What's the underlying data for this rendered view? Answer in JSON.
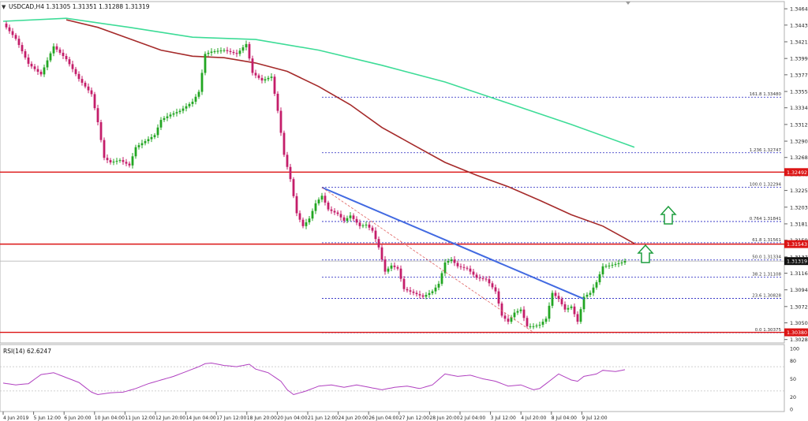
{
  "header": {
    "arrow": "▼",
    "symbol_text": "USDCAD,H4  1.31305 1.31351 1.31288 1.31319"
  },
  "rsi_label": "RSI(14) 62.6247",
  "colors": {
    "bull": "#22a622",
    "bear": "#c41e6a",
    "ma_red": "#a52a2a",
    "ma_green": "#3ddc97",
    "trend": "#4169e1",
    "level": "#dc1414",
    "fib": "#2020c0",
    "arrow": "#1e9e3e",
    "rsi": "#b040c0"
  },
  "chart_data": {
    "type": "candlestick",
    "symbol": "USDCAD",
    "timeframe": "H4",
    "ohlc": {
      "open": 1.31305,
      "high": 1.31351,
      "low": 1.31288,
      "close": 1.31319
    },
    "price_axis_ticks": [
      "1.34645",
      "1.34430",
      "1.34210",
      "1.33990",
      "1.33775",
      "1.33555",
      "1.33340",
      "1.33120",
      "1.32900",
      "1.32685",
      "1.32465",
      "1.32250",
      "1.32030",
      "1.31810",
      "1.31595",
      "1.31375",
      "1.31160",
      "1.30940",
      "1.30720",
      "1.30505",
      "1.30285"
    ],
    "time_axis_labels": [
      "4 Jun 2019",
      "5 Jun 12:00",
      "6 Jun 20:00",
      "10 Jun 04:00",
      "11 Jun 12:00",
      "12 Jun 20:00",
      "14 Jun 04:00",
      "17 Jun 12:00",
      "18 Jun 20:00",
      "20 Jun 04:00",
      "21 Jun 12:00",
      "24 Jun 20:00",
      "26 Jun 04:00",
      "27 Jun 12:00",
      "28 Jun 20:00",
      "2 Jul 04:00",
      "3 Jul 12:00",
      "4 Jul 20:00",
      "8 Jul 04:00",
      "9 Jul 12:00"
    ],
    "ylim": [
      1.3024,
      1.3474
    ],
    "price_path": [
      [
        0,
        1.3445
      ],
      [
        4,
        1.3425
      ],
      [
        8,
        1.3392
      ],
      [
        12,
        1.3378
      ],
      [
        16,
        1.3415
      ],
      [
        20,
        1.3398
      ],
      [
        24,
        1.3372
      ],
      [
        28,
        1.3352
      ],
      [
        30,
        1.3315
      ],
      [
        32,
        1.3268
      ],
      [
        34,
        1.3262
      ],
      [
        37,
        1.3265
      ],
      [
        40,
        1.3258
      ],
      [
        42,
        1.3282
      ],
      [
        45,
        1.329
      ],
      [
        48,
        1.3298
      ],
      [
        50,
        1.3318
      ],
      [
        53,
        1.3325
      ],
      [
        56,
        1.333
      ],
      [
        60,
        1.3342
      ],
      [
        62,
        1.3355
      ],
      [
        64,
        1.3405
      ],
      [
        66,
        1.3408
      ],
      [
        70,
        1.341
      ],
      [
        74,
        1.3405
      ],
      [
        77,
        1.3418
      ],
      [
        79,
        1.338
      ],
      [
        82,
        1.337
      ],
      [
        85,
        1.3375
      ],
      [
        87,
        1.333
      ],
      [
        89,
        1.3272
      ],
      [
        91,
        1.324
      ],
      [
        93,
        1.3195
      ],
      [
        95,
        1.3178
      ],
      [
        97,
        1.3188
      ],
      [
        99,
        1.3208
      ],
      [
        101,
        1.3218
      ],
      [
        103,
        1.32
      ],
      [
        106,
        1.3194
      ],
      [
        108,
        1.3185
      ],
      [
        110,
        1.3192
      ],
      [
        113,
        1.3178
      ],
      [
        115,
        1.318
      ],
      [
        117,
        1.3172
      ],
      [
        119,
        1.315
      ],
      [
        121,
        1.3118
      ],
      [
        123,
        1.3126
      ],
      [
        125,
        1.3122
      ],
      [
        127,
        1.3095
      ],
      [
        130,
        1.309
      ],
      [
        133,
        1.3085
      ],
      [
        136,
        1.3092
      ],
      [
        138,
        1.3102
      ],
      [
        140,
        1.313
      ],
      [
        142,
        1.3134
      ],
      [
        144,
        1.3125
      ],
      [
        147,
        1.3122
      ],
      [
        150,
        1.311
      ],
      [
        153,
        1.3108
      ],
      [
        156,
        1.3092
      ],
      [
        158,
        1.306
      ],
      [
        160,
        1.3052
      ],
      [
        162,
        1.3064
      ],
      [
        164,
        1.3068
      ],
      [
        166,
        1.3046
      ],
      [
        168,
        1.3046
      ],
      [
        170,
        1.3048
      ],
      [
        172,
        1.3056
      ],
      [
        174,
        1.309
      ],
      [
        176,
        1.3082
      ],
      [
        178,
        1.3068
      ],
      [
        180,
        1.3072
      ],
      [
        182,
        1.3052
      ],
      [
        184,
        1.3085
      ],
      [
        186,
        1.309
      ],
      [
        188,
        1.3104
      ],
      [
        190,
        1.3125
      ],
      [
        192,
        1.3126
      ],
      [
        194,
        1.3128
      ],
      [
        196,
        1.313
      ],
      [
        197,
        1.3132
      ]
    ],
    "ma_red_path": [
      [
        20,
        1.345
      ],
      [
        30,
        1.344
      ],
      [
        40,
        1.3425
      ],
      [
        50,
        1.341
      ],
      [
        60,
        1.3402
      ],
      [
        70,
        1.34
      ],
      [
        80,
        1.3393
      ],
      [
        90,
        1.3382
      ],
      [
        100,
        1.3362
      ],
      [
        110,
        1.3338
      ],
      [
        120,
        1.3308
      ],
      [
        130,
        1.3285
      ],
      [
        140,
        1.3262
      ],
      [
        150,
        1.3245
      ],
      [
        160,
        1.323
      ],
      [
        170,
        1.3212
      ],
      [
        180,
        1.3193
      ],
      [
        190,
        1.3178
      ],
      [
        197,
        1.3162
      ],
      [
        200,
        1.3155
      ]
    ],
    "ma_green_path": [
      [
        0,
        1.3448
      ],
      [
        20,
        1.3452
      ],
      [
        40,
        1.344
      ],
      [
        60,
        1.3427
      ],
      [
        80,
        1.3424
      ],
      [
        100,
        1.341
      ],
      [
        120,
        1.339
      ],
      [
        140,
        1.3368
      ],
      [
        160,
        1.334
      ],
      [
        180,
        1.3312
      ],
      [
        200,
        1.3282
      ]
    ],
    "trendline": [
      [
        101,
        1.3229
      ],
      [
        184,
        1.3082
      ]
    ],
    "channel_line": [
      [
        101,
        1.3229
      ],
      [
        168,
        1.3038
      ]
    ],
    "horizontal_levels": [
      {
        "price": 1.32492,
        "label": "1.32492"
      },
      {
        "price": 1.31543,
        "label": "1.31543"
      },
      {
        "price": 1.3038,
        "label": "1.30380"
      }
    ],
    "current_price": {
      "price": 1.31319,
      "label": "1.31319"
    },
    "fibonacci_levels": [
      {
        "price": 1.3348,
        "label": "161.8  1.33480"
      },
      {
        "price": 1.32747,
        "label": "1.236  1.32747"
      },
      {
        "price": 1.32294,
        "label": "100.0  1.32294"
      },
      {
        "price": 1.31841,
        "label": "0.764  1.31841"
      },
      {
        "price": 1.31561,
        "label": "61.8  1.31561"
      },
      {
        "price": 1.31334,
        "label": "50.0  1.31334"
      },
      {
        "price": 1.31108,
        "label": "38.2  1.31108"
      },
      {
        "price": 1.30828,
        "label": "23.6  1.30828"
      },
      {
        "price": 1.30375,
        "label": "0.0  1.30375"
      }
    ],
    "rsi": {
      "period": 14,
      "value": 62.6247,
      "levels": [
        70,
        30
      ],
      "axis_ticks": [
        "100",
        "80",
        "50",
        "20",
        "0"
      ],
      "path": [
        [
          0,
          43
        ],
        [
          4,
          40
        ],
        [
          8,
          42
        ],
        [
          12,
          57
        ],
        [
          16,
          60
        ],
        [
          20,
          52
        ],
        [
          24,
          44
        ],
        [
          26,
          36
        ],
        [
          28,
          28
        ],
        [
          30,
          24
        ],
        [
          34,
          27
        ],
        [
          38,
          28
        ],
        [
          42,
          34
        ],
        [
          46,
          42
        ],
        [
          50,
          48
        ],
        [
          54,
          54
        ],
        [
          58,
          62
        ],
        [
          62,
          70
        ],
        [
          64,
          75
        ],
        [
          66,
          76
        ],
        [
          70,
          72
        ],
        [
          74,
          70
        ],
        [
          78,
          74
        ],
        [
          80,
          66
        ],
        [
          84,
          60
        ],
        [
          88,
          46
        ],
        [
          90,
          32
        ],
        [
          92,
          24
        ],
        [
          96,
          30
        ],
        [
          100,
          38
        ],
        [
          104,
          40
        ],
        [
          108,
          36
        ],
        [
          112,
          40
        ],
        [
          116,
          36
        ],
        [
          120,
          32
        ],
        [
          124,
          36
        ],
        [
          128,
          38
        ],
        [
          132,
          34
        ],
        [
          136,
          40
        ],
        [
          140,
          58
        ],
        [
          144,
          54
        ],
        [
          148,
          56
        ],
        [
          152,
          50
        ],
        [
          156,
          46
        ],
        [
          160,
          38
        ],
        [
          164,
          40
        ],
        [
          168,
          32
        ],
        [
          170,
          34
        ],
        [
          172,
          42
        ],
        [
          176,
          58
        ],
        [
          180,
          48
        ],
        [
          182,
          46
        ],
        [
          184,
          54
        ],
        [
          188,
          58
        ],
        [
          190,
          64
        ],
        [
          194,
          62
        ],
        [
          197,
          65
        ]
      ]
    }
  }
}
